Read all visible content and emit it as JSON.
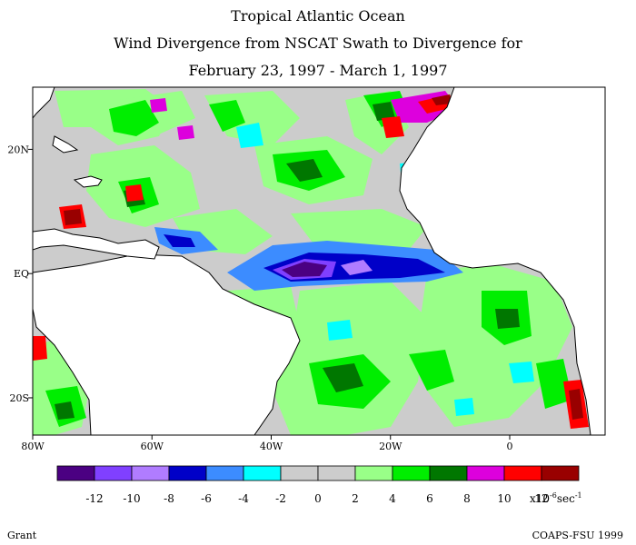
{
  "title": {
    "line1": "Tropical Atlantic Ocean",
    "line2": "Wind Divergence from NSCAT Swath to Divergence for",
    "line3": "February 23, 1997 - March 1, 1997"
  },
  "map": {
    "lon_range": [
      -80,
      16
    ],
    "lat_range": [
      -26,
      30
    ],
    "x_ticks": [
      {
        "value": -80,
        "label": "80W"
      },
      {
        "value": -60,
        "label": "60W"
      },
      {
        "value": -40,
        "label": "40W"
      },
      {
        "value": -20,
        "label": "20W"
      },
      {
        "value": 0,
        "label": "0"
      }
    ],
    "y_ticks": [
      {
        "value": 20,
        "label": "20N"
      },
      {
        "value": 0,
        "label": "EQ"
      },
      {
        "value": -20,
        "label": "20S"
      }
    ]
  },
  "colorbar": {
    "colors": [
      "#4b0082",
      "#8040ff",
      "#b07cff",
      "#0000c8",
      "#3c8cff",
      "#00ffff",
      "#cccccc",
      "#cccccc",
      "#99ff88",
      "#00ee00",
      "#007700",
      "#dd00dd",
      "#ff0000",
      "#990000"
    ],
    "labels": [
      "-12",
      "-10",
      "-8",
      "-6",
      "-4",
      "-2",
      "0",
      "2",
      "4",
      "6",
      "8",
      "10",
      "12"
    ],
    "units_prefix": "x10",
    "units_exp": "-6",
    "units_suffix": "sec",
    "units_exp2": "-1"
  },
  "credits": {
    "left": "Grant",
    "right": "COAPS-FSU 1999"
  }
}
